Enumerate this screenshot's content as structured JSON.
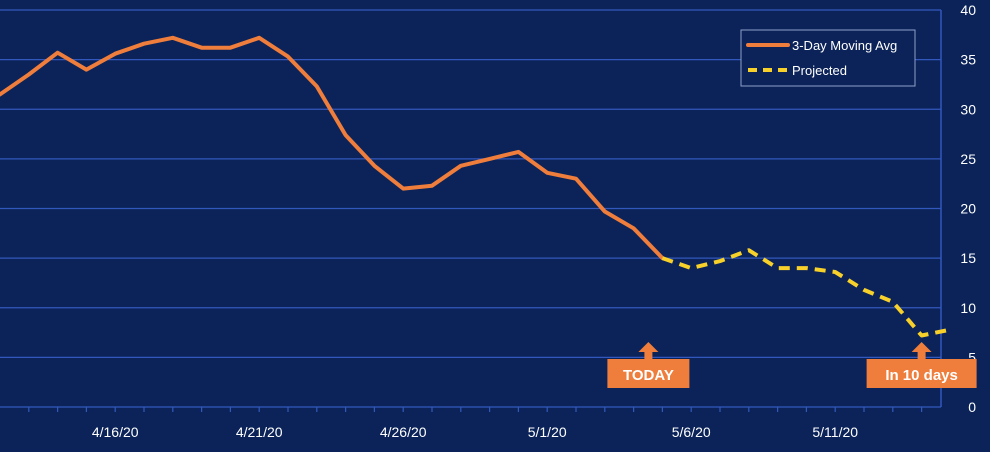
{
  "chart_data": {
    "type": "line",
    "title": "",
    "xlabel": "",
    "ylabel": "",
    "ylim": [
      0,
      40
    ],
    "y_ticks": [
      0,
      5,
      10,
      15,
      20,
      25,
      30,
      35,
      40
    ],
    "y_axis_side": "right",
    "grid": "horizontal",
    "x_tick_labels": [
      "4/16/20",
      "4/21/20",
      "4/26/20",
      "5/1/20",
      "5/6/20",
      "5/11/20"
    ],
    "x_tick_dates": [
      "2020-04-16",
      "2020-04-21",
      "2020-04-26",
      "2020-05-01",
      "2020-05-06",
      "2020-05-11"
    ],
    "x_range": [
      "2020-04-12",
      "2020-05-15"
    ],
    "series": [
      {
        "name": "3-Day Moving Avg",
        "style": "solid",
        "color": "#ef7d3c",
        "points": [
          {
            "x": "2020-04-12",
            "y": 31.5
          },
          {
            "x": "2020-04-13",
            "y": 33.5
          },
          {
            "x": "2020-04-14",
            "y": 35.7
          },
          {
            "x": "2020-04-15",
            "y": 34.0
          },
          {
            "x": "2020-04-16",
            "y": 35.6
          },
          {
            "x": "2020-04-17",
            "y": 36.6
          },
          {
            "x": "2020-04-18",
            "y": 37.2
          },
          {
            "x": "2020-04-19",
            "y": 36.2
          },
          {
            "x": "2020-04-20",
            "y": 36.2
          },
          {
            "x": "2020-04-21",
            "y": 37.2
          },
          {
            "x": "2020-04-22",
            "y": 35.3
          },
          {
            "x": "2020-04-23",
            "y": 32.3
          },
          {
            "x": "2020-04-24",
            "y": 27.4
          },
          {
            "x": "2020-04-25",
            "y": 24.3
          },
          {
            "x": "2020-04-26",
            "y": 22.0
          },
          {
            "x": "2020-04-27",
            "y": 22.3
          },
          {
            "x": "2020-04-28",
            "y": 24.3
          },
          {
            "x": "2020-04-29",
            "y": 25.0
          },
          {
            "x": "2020-04-30",
            "y": 25.7
          },
          {
            "x": "2020-05-01",
            "y": 23.6
          },
          {
            "x": "2020-05-02",
            "y": 23.0
          },
          {
            "x": "2020-05-03",
            "y": 19.7
          },
          {
            "x": "2020-05-04",
            "y": 18.0
          },
          {
            "x": "2020-05-05",
            "y": 15.0
          }
        ]
      },
      {
        "name": "Projected",
        "style": "dashed",
        "color": "#f7d02a",
        "points": [
          {
            "x": "2020-05-05",
            "y": 15.0
          },
          {
            "x": "2020-05-06",
            "y": 14.0
          },
          {
            "x": "2020-05-07",
            "y": 14.7
          },
          {
            "x": "2020-05-08",
            "y": 15.8
          },
          {
            "x": "2020-05-09",
            "y": 14.0
          },
          {
            "x": "2020-05-10",
            "y": 14.0
          },
          {
            "x": "2020-05-11",
            "y": 13.6
          },
          {
            "x": "2020-05-12",
            "y": 11.8
          },
          {
            "x": "2020-05-13",
            "y": 10.6
          },
          {
            "x": "2020-05-14",
            "y": 7.2
          },
          {
            "x": "2020-05-15",
            "y": 7.8
          }
        ]
      }
    ],
    "legend": {
      "position": "top-right",
      "entries": [
        {
          "label": "3-Day Moving Avg",
          "style": "solid",
          "color": "#ef7d3c"
        },
        {
          "label": "Projected",
          "style": "dashed",
          "color": "#f7d02a"
        }
      ]
    },
    "annotations": [
      {
        "label": "TODAY",
        "x": "2020-05-05",
        "arrow": "up",
        "color": "#ef7d3c"
      },
      {
        "label": "In 10 days",
        "x": "2020-05-14",
        "arrow": "up",
        "color": "#ef7d3c"
      }
    ]
  },
  "colors": {
    "background": "#0b2358",
    "grid": "#3358bd",
    "axis": "#3358bd",
    "tick_text": "#ffffff",
    "legend_background": "#0b2358",
    "legend_text": "#ffffff",
    "label_text": "#ffffff"
  }
}
